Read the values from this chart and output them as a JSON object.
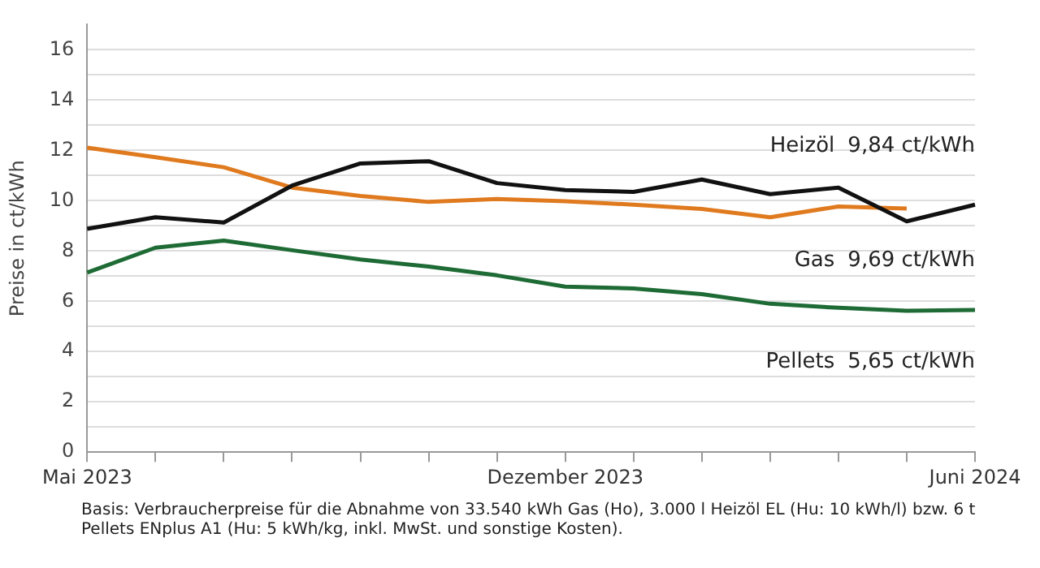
{
  "chart_data": {
    "type": "line",
    "ylabel": "Preise in ct/kWh",
    "categories": [
      "Mai 2023",
      null,
      null,
      null,
      null,
      null,
      null,
      "Dezember 2023",
      null,
      null,
      null,
      null,
      null,
      "Juni 2024"
    ],
    "series": [
      {
        "name": "Heizöl",
        "color": "#111111",
        "values": [
          8.88,
          9.34,
          9.13,
          10.6,
          11.48,
          11.57,
          10.7,
          10.42,
          10.35,
          10.84,
          10.26,
          10.52,
          9.18,
          9.84
        ],
        "value_labels": [
          null,
          null,
          null,
          null,
          null,
          null,
          null,
          null,
          null,
          null,
          null,
          null,
          null,
          "9,84 ct/kWh"
        ]
      },
      {
        "name": "Gas",
        "color": "#e07a1f",
        "values": [
          12.11,
          11.73,
          11.33,
          10.52,
          10.19,
          9.95,
          10.07,
          9.98,
          9.84,
          9.67,
          9.34,
          9.77,
          9.69,
          null
        ],
        "value_labels": [
          null,
          null,
          null,
          null,
          null,
          null,
          null,
          null,
          null,
          null,
          null,
          null,
          "9,69 ct/kWh",
          null
        ]
      },
      {
        "name": "Pellets",
        "color": "#1e6b35",
        "values": [
          7.14,
          8.13,
          8.41,
          8.03,
          7.66,
          7.38,
          7.03,
          6.58,
          6.51,
          6.28,
          5.9,
          5.74,
          5.62,
          5.65
        ],
        "value_labels": [
          null,
          null,
          null,
          null,
          null,
          null,
          null,
          null,
          null,
          null,
          null,
          null,
          null,
          "5,65 ct/kWh"
        ]
      }
    ],
    "ylim": [
      0,
      17
    ],
    "yticks": [
      0,
      {
        "value": 1,
        "label": null
      },
      2,
      {
        "value": 3,
        "label": null
      },
      4,
      {
        "value": 5,
        "label": null
      },
      6,
      {
        "value": 7,
        "label": null
      },
      8,
      {
        "value": 9,
        "label": null
      },
      10,
      {
        "value": 11,
        "label": null
      },
      12,
      {
        "value": 13,
        "label": null
      },
      14,
      {
        "value": 15,
        "label": null
      },
      16
    ],
    "grid": "y",
    "legend": false,
    "marker": "none",
    "line_style": "solid",
    "annotations": [
      "Basis: Verbraucherpreise für die Abnahme von 33.540 kWh Gas (Ho), 3.000 l Heizöl EL (Hu: 10 kWh/l) bzw. 6 t Pellets ENplus A1 (Hu: 5 kWh/kg, inkl. MwSt. und sonstige Kosten)."
    ]
  }
}
